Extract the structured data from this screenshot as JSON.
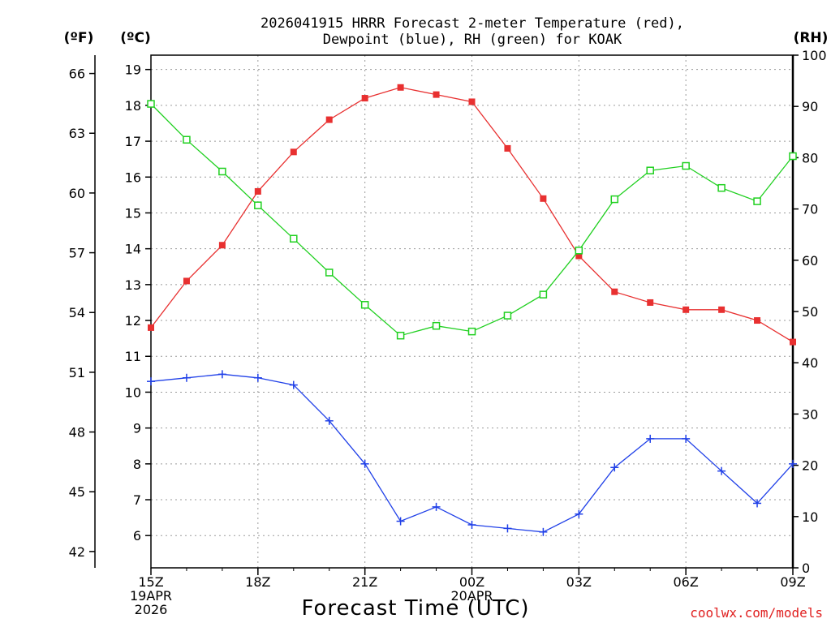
{
  "chart_data": {
    "type": "line",
    "title_lines": [
      "2026041915 HRRR Forecast 2-meter Temperature (red),",
      "Dewpoint (blue), RH (green) for KOAK"
    ],
    "xlabel": "Forecast Time (UTC)",
    "credit": "coolwx.com/models",
    "units": {
      "fahrenheit": "(ºF)",
      "celsius": "(ºC)",
      "rh": "(RH)"
    },
    "x_hours": [
      15,
      16,
      17,
      18,
      19,
      20,
      21,
      22,
      23,
      24,
      25,
      26,
      27,
      28,
      29,
      30,
      31,
      32,
      33
    ],
    "x_ticks": [
      {
        "hour": 15,
        "lines": [
          "15Z",
          "19APR",
          "2026"
        ]
      },
      {
        "hour": 18,
        "lines": [
          "18Z"
        ]
      },
      {
        "hour": 21,
        "lines": [
          "21Z"
        ]
      },
      {
        "hour": 24,
        "lines": [
          "00Z",
          "20APR"
        ]
      },
      {
        "hour": 27,
        "lines": [
          "03Z"
        ]
      },
      {
        "hour": 30,
        "lines": [
          "06Z"
        ]
      },
      {
        "hour": 33,
        "lines": [
          "09Z"
        ]
      }
    ],
    "celsius_ticks": [
      6,
      7,
      8,
      9,
      10,
      11,
      12,
      13,
      14,
      15,
      16,
      17,
      18,
      19
    ],
    "fahrenheit_ticks": [
      42,
      45,
      48,
      51,
      54,
      57,
      60,
      63,
      66
    ],
    "rh_ticks": [
      0,
      10,
      20,
      30,
      40,
      50,
      60,
      70,
      80,
      90,
      100
    ],
    "ylim_celsius": [
      5.1,
      19.4
    ],
    "ylim_rh": [
      0,
      100
    ],
    "grid": true,
    "series": [
      {
        "name": "Temperature",
        "axis": "celsius",
        "color": "#e83030",
        "marker": "filled-square",
        "values": [
          11.8,
          13.1,
          14.1,
          15.6,
          16.7,
          17.6,
          18.2,
          18.5,
          18.3,
          18.1,
          16.8,
          15.4,
          13.8,
          12.8,
          12.5,
          12.3,
          12.3,
          12.0,
          11.4
        ]
      },
      {
        "name": "Dewpoint",
        "axis": "celsius",
        "color": "#2040e8",
        "marker": "plus",
        "values": [
          10.3,
          10.4,
          10.5,
          10.4,
          10.2,
          9.2,
          8.0,
          6.4,
          6.8,
          6.3,
          6.2,
          6.1,
          6.6,
          7.9,
          8.7,
          8.7,
          7.8,
          6.9,
          8.0
        ]
      },
      {
        "name": "RH",
        "axis": "rh",
        "color": "#20d020",
        "marker": "open-square",
        "values": [
          90.5,
          83.5,
          77.3,
          70.7,
          64.2,
          57.6,
          51.3,
          45.3,
          47.2,
          46.1,
          49.2,
          53.3,
          61.9,
          71.9,
          77.5,
          78.4,
          74.1,
          71.5,
          80.3
        ]
      }
    ]
  }
}
